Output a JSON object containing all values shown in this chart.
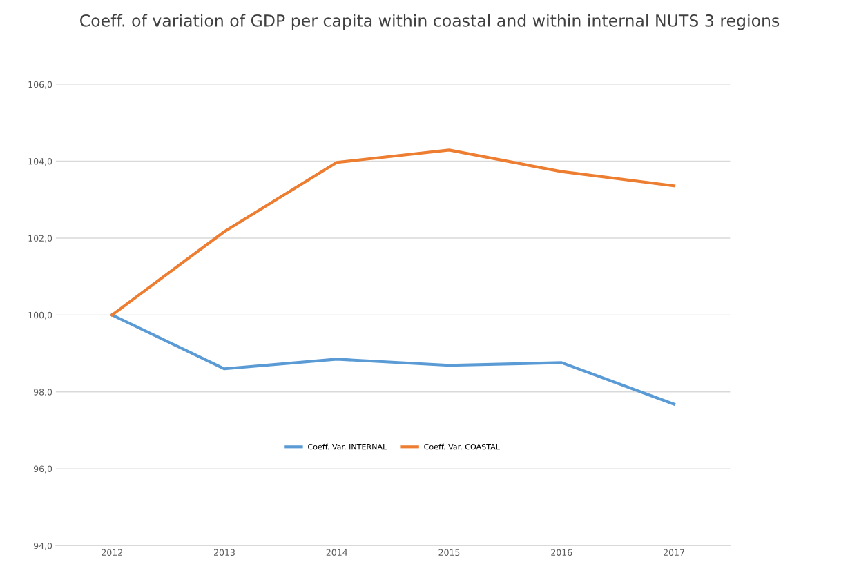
{
  "chart_data": {
    "type": "line",
    "title": "Coeff. of variation of GDP per capita within coastal and within internal NUTS 3 regions",
    "categories": [
      "2012",
      "2013",
      "2014",
      "2015",
      "2016",
      "2017"
    ],
    "series": [
      {
        "name": "Coeff. Var. INTERNAL",
        "color": "#5b9bd5",
        "values": [
          100.0,
          98.6,
          98.85,
          98.69,
          98.76,
          97.68
        ]
      },
      {
        "name": "Coeff. Var. COASTAL",
        "color": "#ed7d31",
        "values": [
          100.0,
          102.17,
          103.97,
          104.29,
          103.73,
          103.36
        ]
      }
    ],
    "ylim": [
      94,
      106
    ],
    "yticks": [
      {
        "value": 94,
        "label": "94,0"
      },
      {
        "value": 96,
        "label": "96,0"
      },
      {
        "value": 98,
        "label": "98,0"
      },
      {
        "value": 100,
        "label": "100,0"
      },
      {
        "value": 102,
        "label": "102,0"
      },
      {
        "value": 104,
        "label": "104,0"
      },
      {
        "value": 106,
        "label": "106,0"
      }
    ],
    "grid": "y",
    "legend": "lower center",
    "marker": "none",
    "line_style": "solid"
  }
}
